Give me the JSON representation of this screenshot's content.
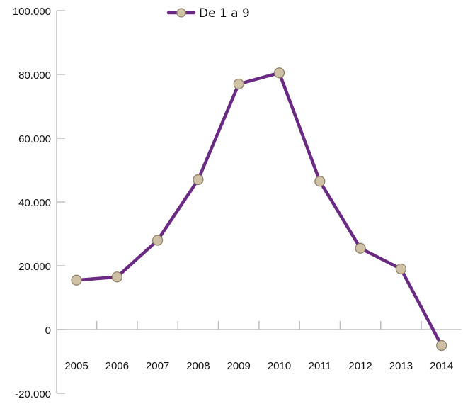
{
  "chart_data": {
    "type": "line",
    "categories": [
      "2005",
      "2006",
      "2007",
      "2008",
      "2009",
      "2010",
      "2011",
      "2012",
      "2013",
      "2014"
    ],
    "series": [
      {
        "name": "De 1 a 9",
        "values": [
          15500,
          16500,
          28000,
          47000,
          77000,
          80500,
          46500,
          25500,
          19000,
          -5000
        ]
      }
    ],
    "ylim": [
      -20000,
      100000
    ],
    "yticks": [
      -20000,
      0,
      20000,
      40000,
      60000,
      80000,
      100000
    ],
    "ytick_labels": [
      "-20.000",
      "0",
      "20.000",
      "40.000",
      "60.000",
      "80.000",
      "100.000"
    ],
    "legend_position": "top",
    "grid": false,
    "colors": {
      "line": "#6a2a84",
      "marker_fill": "#cfc1a6",
      "marker_stroke": "#8c7d66",
      "axis": "#bdbdbd"
    }
  }
}
